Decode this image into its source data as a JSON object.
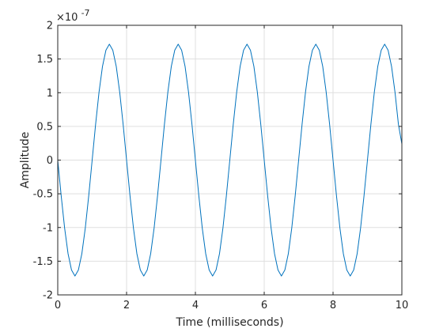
{
  "chart_data": {
    "type": "line",
    "title": "",
    "xlabel": "Time (milliseconds)",
    "ylabel": "Amplitude",
    "xlim": [
      0,
      10
    ],
    "ylim": [
      -2,
      2
    ],
    "y_exponent_label": "×10",
    "y_exponent_power": "-7",
    "grid": true,
    "x_ticks": [
      0,
      2,
      4,
      6,
      8,
      10
    ],
    "x_tick_labels": [
      "0",
      "2",
      "4",
      "6",
      "8",
      "10"
    ],
    "y_ticks": [
      -2,
      -1.5,
      -1,
      -0.5,
      0,
      0.5,
      1,
      1.5,
      2
    ],
    "y_tick_labels": [
      "-2",
      "-1.5",
      "-1",
      "-0.5",
      "0",
      "0.5",
      "1",
      "1.5",
      "2"
    ],
    "series": [
      {
        "color": "#0072bd",
        "x": [
          0,
          0.1,
          0.2,
          0.3,
          0.4,
          0.5,
          0.6,
          0.7,
          0.8,
          0.9,
          1.0,
          1.1,
          1.2,
          1.3,
          1.4,
          1.5,
          1.6,
          1.7,
          1.8,
          1.9,
          2.0,
          2.1,
          2.2,
          2.3,
          2.4,
          2.5,
          2.6,
          2.7,
          2.8,
          2.9,
          3.0,
          3.1,
          3.2,
          3.3,
          3.4,
          3.5,
          3.6,
          3.7,
          3.8,
          3.9,
          4.0,
          4.1,
          4.2,
          4.3,
          4.4,
          4.5,
          4.6,
          4.7,
          4.8,
          4.9,
          5.0,
          5.1,
          5.2,
          5.3,
          5.4,
          5.5,
          5.6,
          5.7,
          5.8,
          5.9,
          6.0,
          6.1,
          6.2,
          6.3,
          6.4,
          6.5,
          6.6,
          6.7,
          6.8,
          6.9,
          7.0,
          7.1,
          7.2,
          7.3,
          7.4,
          7.5,
          7.6,
          7.7,
          7.8,
          7.9,
          8.0,
          8.1,
          8.2,
          8.3,
          8.4,
          8.5,
          8.6,
          8.7,
          8.8,
          8.9,
          9.0,
          9.1,
          9.2,
          9.3,
          9.4,
          9.5,
          9.6,
          9.7,
          9.8,
          9.9,
          10.0
        ],
        "y": [
          0,
          -0.53,
          -1.01,
          -1.39,
          -1.63,
          -1.72,
          -1.63,
          -1.39,
          -1.01,
          -0.53,
          0,
          0.53,
          1.01,
          1.39,
          1.63,
          1.72,
          1.63,
          1.39,
          1.01,
          0.53,
          0,
          -0.53,
          -1.01,
          -1.39,
          -1.63,
          -1.72,
          -1.63,
          -1.39,
          -1.01,
          -0.53,
          0,
          0.53,
          1.01,
          1.39,
          1.63,
          1.72,
          1.63,
          1.39,
          1.01,
          0.53,
          0,
          -0.53,
          -1.01,
          -1.39,
          -1.63,
          -1.72,
          -1.63,
          -1.39,
          -1.01,
          -0.53,
          0,
          0.53,
          1.01,
          1.39,
          1.63,
          1.72,
          1.63,
          1.39,
          1.01,
          0.53,
          0,
          -0.53,
          -1.01,
          -1.39,
          -1.63,
          -1.72,
          -1.63,
          -1.39,
          -1.01,
          -0.53,
          0,
          0.53,
          1.01,
          1.39,
          1.63,
          1.72,
          1.63,
          1.39,
          1.01,
          0.53,
          0,
          -0.53,
          -1.01,
          -1.39,
          -1.63,
          -1.72,
          -1.63,
          -1.39,
          -1.01,
          -0.53,
          0,
          0.53,
          1.01,
          1.39,
          1.63,
          1.72,
          1.63,
          1.39,
          1.01,
          0.53,
          0.24
        ]
      }
    ]
  }
}
